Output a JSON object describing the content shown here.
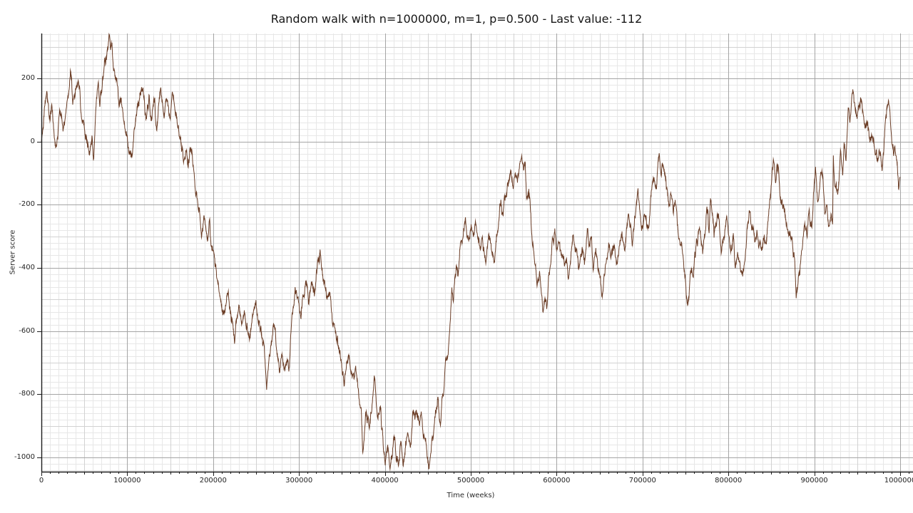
{
  "chart_data": {
    "type": "line",
    "title": "Random walk with n=1000000, m=1, p=0.500 - Last value: -112",
    "xlabel": "Time (weeks)",
    "ylabel": "Server score",
    "params": {
      "n": 1000000,
      "m": 1,
      "p": "0.500",
      "last_value": -112
    },
    "xlim": [
      0,
      1014950
    ],
    "ylim": [
      -1045,
      342
    ],
    "x_tick_values": [
      0,
      100000,
      200000,
      300000,
      400000,
      500000,
      600000,
      700000,
      800000,
      900000,
      1000000
    ],
    "x_tick_labels": [
      "0",
      "100000",
      "200000",
      "300000",
      "400000",
      "500000",
      "600000",
      "700000",
      "800000",
      "900000",
      "1000000"
    ],
    "y_tick_values": [
      200,
      0,
      -200,
      -400,
      -600,
      -800,
      -1000
    ],
    "y_tick_labels": [
      "200",
      "0",
      "-200",
      "-400",
      "-600",
      "-800",
      "-1000"
    ],
    "grid": {
      "major": true,
      "medium": true,
      "minor": true,
      "x_minor_step": 10000,
      "x_medium_step": 50000,
      "x_major_step": 100000,
      "y_minor_step": 20,
      "y_medium_step": 100,
      "y_major_step": 200
    },
    "legend": null,
    "colors": {
      "background": "#ffffff",
      "line": "#6b3d26",
      "grid_minor": "#e7e7e7",
      "grid_medium": "#d2d2d2",
      "grid_major": "#a5a5a5",
      "axis": "#1c1c1c",
      "text": "#242424"
    },
    "noise": {
      "seed": 42,
      "roughness": 0.45,
      "min_dt": 350
    },
    "waypoints": [
      [
        0,
        0
      ],
      [
        6600,
        155
      ],
      [
        10000,
        65
      ],
      [
        12400,
        110
      ],
      [
        16600,
        -19
      ],
      [
        21600,
        94
      ],
      [
        25700,
        42
      ],
      [
        30700,
        139
      ],
      [
        34000,
        223
      ],
      [
        36500,
        117
      ],
      [
        40700,
        170
      ],
      [
        43200,
        189
      ],
      [
        47300,
        65
      ],
      [
        53100,
        -3
      ],
      [
        55600,
        -41
      ],
      [
        58900,
        19
      ],
      [
        60600,
        -60
      ],
      [
        63900,
        125
      ],
      [
        66400,
        189
      ],
      [
        68100,
        110
      ],
      [
        72200,
        207
      ],
      [
        75500,
        268
      ],
      [
        78800,
        340
      ],
      [
        80500,
        290
      ],
      [
        82200,
        313
      ],
      [
        84700,
        229
      ],
      [
        88000,
        193
      ],
      [
        90500,
        110
      ],
      [
        93000,
        139
      ],
      [
        97100,
        42
      ],
      [
        101200,
        -19
      ],
      [
        105400,
        -41
      ],
      [
        109600,
        65
      ],
      [
        115400,
        155
      ],
      [
        117900,
        162
      ],
      [
        122000,
        72
      ],
      [
        125300,
        148
      ],
      [
        127800,
        65
      ],
      [
        132000,
        139
      ],
      [
        134400,
        35
      ],
      [
        138600,
        165
      ],
      [
        142700,
        79
      ],
      [
        146000,
        132
      ],
      [
        150200,
        72
      ],
      [
        152700,
        155
      ],
      [
        155200,
        110
      ],
      [
        159300,
        42
      ],
      [
        162700,
        -10
      ],
      [
        166000,
        -60
      ],
      [
        168500,
        -28
      ],
      [
        171000,
        -82
      ],
      [
        174300,
        -25
      ],
      [
        177600,
        -95
      ],
      [
        180100,
        -168
      ],
      [
        184300,
        -225
      ],
      [
        186700,
        -300
      ],
      [
        189200,
        -235
      ],
      [
        193400,
        -315
      ],
      [
        196000,
        -245
      ],
      [
        197500,
        -330
      ],
      [
        200800,
        -350
      ],
      [
        204200,
        -432
      ],
      [
        206700,
        -470
      ],
      [
        210000,
        -520
      ],
      [
        212500,
        -545
      ],
      [
        215800,
        -490
      ],
      [
        217400,
        -478
      ],
      [
        219900,
        -540
      ],
      [
        223200,
        -583
      ],
      [
        224900,
        -640
      ],
      [
        227400,
        -560
      ],
      [
        229900,
        -518
      ],
      [
        233200,
        -580
      ],
      [
        236500,
        -545
      ],
      [
        239800,
        -590
      ],
      [
        242300,
        -628
      ],
      [
        245700,
        -550
      ],
      [
        249800,
        -502
      ],
      [
        253100,
        -570
      ],
      [
        254800,
        -601
      ],
      [
        258100,
        -640
      ],
      [
        259800,
        -665
      ],
      [
        262300,
        -786
      ],
      [
        264700,
        -700
      ],
      [
        267200,
        -645
      ],
      [
        271400,
        -583
      ],
      [
        273900,
        -660
      ],
      [
        277200,
        -733
      ],
      [
        280500,
        -680
      ],
      [
        283800,
        -720
      ],
      [
        286300,
        -690
      ],
      [
        288800,
        -715
      ],
      [
        291300,
        -574
      ],
      [
        293800,
        -520
      ],
      [
        297100,
        -478
      ],
      [
        299600,
        -510
      ],
      [
        302100,
        -560
      ],
      [
        305400,
        -490
      ],
      [
        307900,
        -440
      ],
      [
        311200,
        -515
      ],
      [
        314500,
        -448
      ],
      [
        317900,
        -490
      ],
      [
        321200,
        -400
      ],
      [
        324500,
        -342
      ],
      [
        327800,
        -430
      ],
      [
        331100,
        -465
      ],
      [
        332800,
        -500
      ],
      [
        336100,
        -480
      ],
      [
        337800,
        -538
      ],
      [
        341900,
        -590
      ],
      [
        346100,
        -650
      ],
      [
        349400,
        -700
      ],
      [
        352700,
        -775
      ],
      [
        355200,
        -710
      ],
      [
        358500,
        -676
      ],
      [
        362700,
        -740
      ],
      [
        366000,
        -710
      ],
      [
        368500,
        -778
      ],
      [
        372600,
        -854
      ],
      [
        374300,
        -985
      ],
      [
        376800,
        -900
      ],
      [
        378400,
        -854
      ],
      [
        381700,
        -905
      ],
      [
        384200,
        -860
      ],
      [
        387600,
        -741
      ],
      [
        391700,
        -876
      ],
      [
        394200,
        -840
      ],
      [
        395900,
        -898
      ],
      [
        400000,
        -1012
      ],
      [
        403300,
        -960
      ],
      [
        405800,
        -1034
      ],
      [
        409100,
        -970
      ],
      [
        411600,
        -936
      ],
      [
        415800,
        -1027
      ],
      [
        418300,
        -955
      ],
      [
        422400,
        -1005
      ],
      [
        426600,
        -922
      ],
      [
        429900,
        -960
      ],
      [
        432400,
        -854
      ],
      [
        434900,
        -880
      ],
      [
        436500,
        -851
      ],
      [
        439800,
        -885
      ],
      [
        442300,
        -855
      ],
      [
        445600,
        -929
      ],
      [
        448100,
        -960
      ],
      [
        451500,
        -1035
      ],
      [
        453900,
        -980
      ],
      [
        455600,
        -936
      ],
      [
        458100,
        -870
      ],
      [
        461400,
        -816
      ],
      [
        463100,
        -860
      ],
      [
        464700,
        -899
      ],
      [
        467200,
        -800
      ],
      [
        469700,
        -733
      ],
      [
        472200,
        -690
      ],
      [
        473900,
        -660
      ],
      [
        476400,
        -560
      ],
      [
        478000,
        -462
      ],
      [
        479700,
        -507
      ],
      [
        483000,
        -394
      ],
      [
        485400,
        -420
      ],
      [
        487100,
        -342
      ],
      [
        490400,
        -310
      ],
      [
        492900,
        -256
      ],
      [
        495400,
        -300
      ],
      [
        497900,
        -310
      ],
      [
        500400,
        -262
      ],
      [
        502900,
        -300
      ],
      [
        505400,
        -252
      ],
      [
        507900,
        -300
      ],
      [
        511200,
        -342
      ],
      [
        512900,
        -305
      ],
      [
        515400,
        -345
      ],
      [
        517800,
        -380
      ],
      [
        520300,
        -310
      ],
      [
        522000,
        -304
      ],
      [
        524500,
        -350
      ],
      [
        527800,
        -380
      ],
      [
        530300,
        -300
      ],
      [
        532800,
        -250
      ],
      [
        534400,
        -200
      ],
      [
        536100,
        -230
      ],
      [
        537700,
        -235
      ],
      [
        540200,
        -170
      ],
      [
        542700,
        -131
      ],
      [
        545200,
        -110
      ],
      [
        546900,
        -93
      ],
      [
        549400,
        -150
      ],
      [
        551900,
        -100
      ],
      [
        554400,
        -130
      ],
      [
        556900,
        -70
      ],
      [
        559300,
        -45
      ],
      [
        561800,
        -90
      ],
      [
        563500,
        -70
      ],
      [
        565100,
        -176
      ],
      [
        567600,
        -150
      ],
      [
        569300,
        -206
      ],
      [
        571800,
        -327
      ],
      [
        574300,
        -380
      ],
      [
        577600,
        -448
      ],
      [
        580100,
        -410
      ],
      [
        581800,
        -463
      ],
      [
        584200,
        -540
      ],
      [
        586700,
        -500
      ],
      [
        588400,
        -530
      ],
      [
        590900,
        -424
      ],
      [
        593400,
        -380
      ],
      [
        595000,
        -304
      ],
      [
        598300,
        -293
      ],
      [
        600800,
        -340
      ],
      [
        603300,
        -320
      ],
      [
        605800,
        -360
      ],
      [
        609100,
        -395
      ],
      [
        611600,
        -370
      ],
      [
        613300,
        -432
      ],
      [
        615800,
        -390
      ],
      [
        619100,
        -296
      ],
      [
        621600,
        -350
      ],
      [
        625700,
        -403
      ],
      [
        628200,
        -355
      ],
      [
        629900,
        -345
      ],
      [
        632400,
        -390
      ],
      [
        635700,
        -274
      ],
      [
        638200,
        -330
      ],
      [
        640700,
        -300
      ],
      [
        642300,
        -403
      ],
      [
        644800,
        -350
      ],
      [
        646500,
        -360
      ],
      [
        649800,
        -420
      ],
      [
        653100,
        -492
      ],
      [
        655600,
        -420
      ],
      [
        658100,
        -370
      ],
      [
        660600,
        -320
      ],
      [
        663100,
        -370
      ],
      [
        665600,
        -330
      ],
      [
        669700,
        -380
      ],
      [
        673000,
        -330
      ],
      [
        676300,
        -300
      ],
      [
        679600,
        -340
      ],
      [
        683700,
        -229
      ],
      [
        687900,
        -327
      ],
      [
        691200,
        -240
      ],
      [
        694500,
        -154
      ],
      [
        698700,
        -274
      ],
      [
        702000,
        -230
      ],
      [
        704500,
        -250
      ],
      [
        707000,
        -274
      ],
      [
        710300,
        -154
      ],
      [
        713600,
        -120
      ],
      [
        716100,
        -150
      ],
      [
        719400,
        -37
      ],
      [
        721900,
        -110
      ],
      [
        725200,
        -87
      ],
      [
        727700,
        -150
      ],
      [
        731000,
        -199
      ],
      [
        733500,
        -170
      ],
      [
        736000,
        -229
      ],
      [
        739300,
        -210
      ],
      [
        741800,
        -297
      ],
      [
        744300,
        -327
      ],
      [
        748400,
        -409
      ],
      [
        752600,
        -512
      ],
      [
        755100,
        -440
      ],
      [
        756700,
        -405
      ],
      [
        759200,
        -430
      ],
      [
        760900,
        -349
      ],
      [
        764200,
        -320
      ],
      [
        766700,
        -282
      ],
      [
        770000,
        -356
      ],
      [
        772500,
        -300
      ],
      [
        775000,
        -206
      ],
      [
        777500,
        -290
      ],
      [
        779200,
        -180
      ],
      [
        782500,
        -260
      ],
      [
        783300,
        -304
      ],
      [
        786600,
        -250
      ],
      [
        789100,
        -245
      ],
      [
        791600,
        -355
      ],
      [
        794900,
        -300
      ],
      [
        798200,
        -240
      ],
      [
        800700,
        -300
      ],
      [
        802400,
        -340
      ],
      [
        805700,
        -290
      ],
      [
        808200,
        -400
      ],
      [
        810700,
        -350
      ],
      [
        812400,
        -380
      ],
      [
        816600,
        -427
      ],
      [
        819100,
        -380
      ],
      [
        821500,
        -280
      ],
      [
        824900,
        -222
      ],
      [
        827400,
        -280
      ],
      [
        830700,
        -318
      ],
      [
        833200,
        -280
      ],
      [
        835700,
        -330
      ],
      [
        838200,
        -340
      ],
      [
        841500,
        -300
      ],
      [
        844000,
        -320
      ],
      [
        847300,
        -213
      ],
      [
        849800,
        -140
      ],
      [
        852300,
        -56
      ],
      [
        854800,
        -130
      ],
      [
        858100,
        -80
      ],
      [
        859800,
        -160
      ],
      [
        862300,
        -191
      ],
      [
        864000,
        -206
      ],
      [
        868100,
        -267
      ],
      [
        872300,
        -304
      ],
      [
        874800,
        -331
      ],
      [
        877300,
        -380
      ],
      [
        878900,
        -496
      ],
      [
        881400,
        -430
      ],
      [
        884800,
        -360
      ],
      [
        887300,
        -300
      ],
      [
        888900,
        -258
      ],
      [
        891400,
        -300
      ],
      [
        893900,
        -218
      ],
      [
        897200,
        -272
      ],
      [
        899700,
        -146
      ],
      [
        901400,
        -80
      ],
      [
        903900,
        -191
      ],
      [
        906400,
        -140
      ],
      [
        909700,
        -105
      ],
      [
        912200,
        -229
      ],
      [
        914700,
        -200
      ],
      [
        916300,
        -258
      ],
      [
        919700,
        -230
      ],
      [
        921300,
        -262
      ],
      [
        922200,
        -44
      ],
      [
        924700,
        -146
      ],
      [
        927200,
        -168
      ],
      [
        930500,
        -26
      ],
      [
        933000,
        -107
      ],
      [
        934700,
        -3
      ],
      [
        937000,
        -60
      ],
      [
        939500,
        106
      ],
      [
        941500,
        60
      ],
      [
        944000,
        151
      ],
      [
        945700,
        152
      ],
      [
        949800,
        72
      ],
      [
        952300,
        120
      ],
      [
        954800,
        132
      ],
      [
        957300,
        80
      ],
      [
        959000,
        42
      ],
      [
        962300,
        61
      ],
      [
        964800,
        -3
      ],
      [
        969000,
        12
      ],
      [
        971500,
        -40
      ],
      [
        973100,
        -63
      ],
      [
        975600,
        -26
      ],
      [
        978900,
        -93
      ],
      [
        982200,
        40
      ],
      [
        985500,
        114
      ],
      [
        987200,
        115
      ],
      [
        989700,
        24
      ],
      [
        992200,
        -39
      ],
      [
        993900,
        -15
      ],
      [
        996400,
        -71
      ],
      [
        998100,
        -150
      ],
      [
        1000000,
        -112
      ]
    ]
  }
}
